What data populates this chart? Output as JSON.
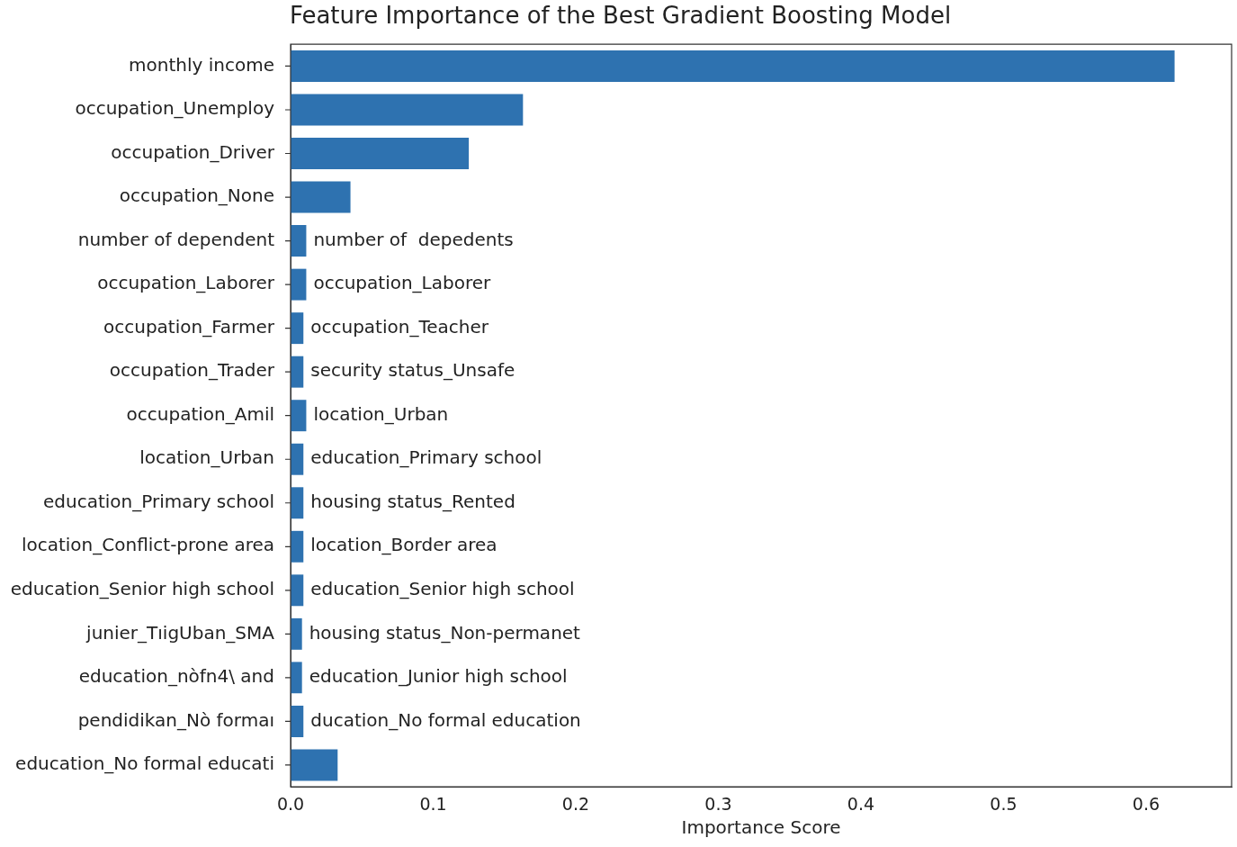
{
  "chart_data": {
    "type": "bar",
    "orientation": "horizontal",
    "title": "Feature Importance of the Best Gradient Boosting Model",
    "xlabel": "Importance Score",
    "categories": [
      "monthly income",
      "occupation_Unemploy",
      "occupation_Driver",
      "occupation_None",
      "number of dependent",
      "occupation_Laborer",
      "occupation_Farmer",
      "occupation_Trader",
      "occupation_Amil",
      "location_Urban",
      "education_Primary school",
      "location_Conflict-prone area",
      "education_Senior high school",
      "junier_TıigUban_SMA",
      "education_nòfn4\\ and",
      "pendidikan_Nò formaı",
      "education_No formal educati"
    ],
    "values": [
      0.62,
      0.163,
      0.125,
      0.042,
      0.011,
      0.011,
      0.009,
      0.009,
      0.011,
      0.009,
      0.009,
      0.009,
      0.009,
      0.008,
      0.008,
      0.009,
      0.033
    ],
    "color": "#2e72b0",
    "xlim": [
      0,
      0.66
    ],
    "xticks": [
      {
        "value": 0,
        "label": "0.0"
      },
      {
        "value": 0.1,
        "label": "0.1"
      },
      {
        "value": 0.2,
        "label": "0.2"
      },
      {
        "value": 0.3,
        "label": "0.3"
      },
      {
        "value": 0.4,
        "label": "0.4"
      },
      {
        "value": 0.5,
        "label": "0.5"
      },
      {
        "value": 0.6,
        "label": "0.6"
      }
    ],
    "annotations": [
      {
        "text": "number of  depedents",
        "x": 0.011,
        "y": "number of dependent"
      },
      {
        "text": "occupation_Laborer",
        "x": 0.011,
        "y": "occupation_Laborer"
      },
      {
        "text": "occupation_Teacher",
        "x": 0.009,
        "y": "occupation_Farmer"
      },
      {
        "text": "security status_Unsafe",
        "x": 0.009,
        "y": "occupation_Trader"
      },
      {
        "text": "location_Urban",
        "x": 0.011,
        "y": "occupation_Amil"
      },
      {
        "text": "education_Primary school",
        "x": 0.009,
        "y": "location_Urban"
      },
      {
        "text": "housing status_Rented",
        "x": 0.009,
        "y": "education_Primary school"
      },
      {
        "text": "location_Border area",
        "x": 0.009,
        "y": "location_Conflict-prone area"
      },
      {
        "text": "education_Senior high school",
        "x": 0.009,
        "y": "education_Senior high school"
      },
      {
        "text": "housing status_Non-permanet",
        "x": 0.008,
        "y": "junier_TıigUban_SMA"
      },
      {
        "text": "education_Junior high school",
        "x": 0.008,
        "y": "education_nòfn4\\ and"
      },
      {
        "text": "ducation_No formal education",
        "x": 0.009,
        "y": "pendidikan_Nò formaı"
      }
    ]
  }
}
